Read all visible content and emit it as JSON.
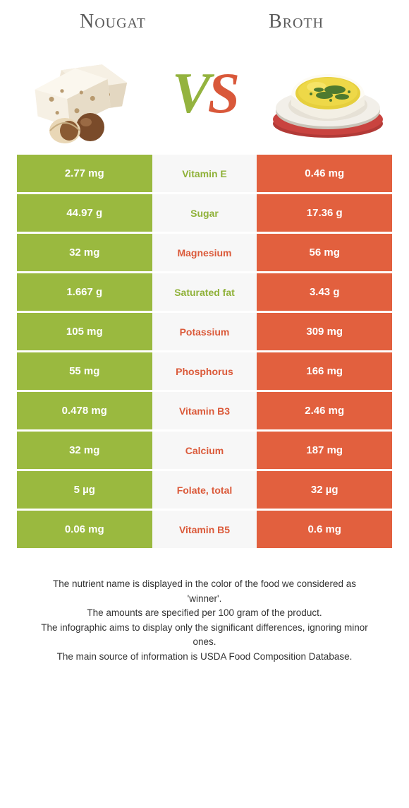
{
  "header": {
    "left_title": "Nougat",
    "right_title": "Broth",
    "vs_v": "V",
    "vs_s": "S"
  },
  "colors": {
    "left_bg": "#9ab93f",
    "right_bg": "#e2603e",
    "mid_bg": "#f7f7f7",
    "left_text": "#90b23a",
    "right_text": "#db5a3a",
    "cell_text": "#ffffff",
    "page_bg": "#ffffff"
  },
  "rows": [
    {
      "left": "2.77 mg",
      "label": "Vitamin E",
      "right": "0.46 mg",
      "winner": "left"
    },
    {
      "left": "44.97 g",
      "label": "Sugar",
      "right": "17.36 g",
      "winner": "left"
    },
    {
      "left": "32 mg",
      "label": "Magnesium",
      "right": "56 mg",
      "winner": "right"
    },
    {
      "left": "1.667 g",
      "label": "Saturated fat",
      "right": "3.43 g",
      "winner": "left"
    },
    {
      "left": "105 mg",
      "label": "Potassium",
      "right": "309 mg",
      "winner": "right"
    },
    {
      "left": "55 mg",
      "label": "Phosphorus",
      "right": "166 mg",
      "winner": "right"
    },
    {
      "left": "0.478 mg",
      "label": "Vitamin B3",
      "right": "2.46 mg",
      "winner": "right"
    },
    {
      "left": "32 mg",
      "label": "Calcium",
      "right": "187 mg",
      "winner": "right"
    },
    {
      "left": "5 µg",
      "label": "Folate, total",
      "right": "32 µg",
      "winner": "right"
    },
    {
      "left": "0.06 mg",
      "label": "Vitamin B5",
      "right": "0.6 mg",
      "winner": "right"
    }
  ],
  "footer": {
    "l1a": "The nutrient name is displayed in the color of the food we considered as",
    "l1b": "'winner'.",
    "l2": "The amounts are specified per 100 gram of the product.",
    "l3a": "The infographic aims to display only the significant differences, ignoring minor",
    "l3b": "ones.",
    "l4": "The main source of information is USDA Food Composition Database."
  },
  "illustration": {
    "nougat": {
      "block1": "#efe6d6",
      "block2": "#f6f0e4",
      "nut_shell": "#7a4b2a",
      "nut_light": "#e9d7b6",
      "nut_dark": "#8a5a33",
      "speckle": "#b89a6f"
    },
    "broth": {
      "plate": "#f2efe9",
      "plate_shadow": "#c9c4b9",
      "napkin": "#b23a37",
      "bowl": "#fdfbf4",
      "soup": "#e6cf3d",
      "herbs": "#4e7a2f"
    }
  }
}
